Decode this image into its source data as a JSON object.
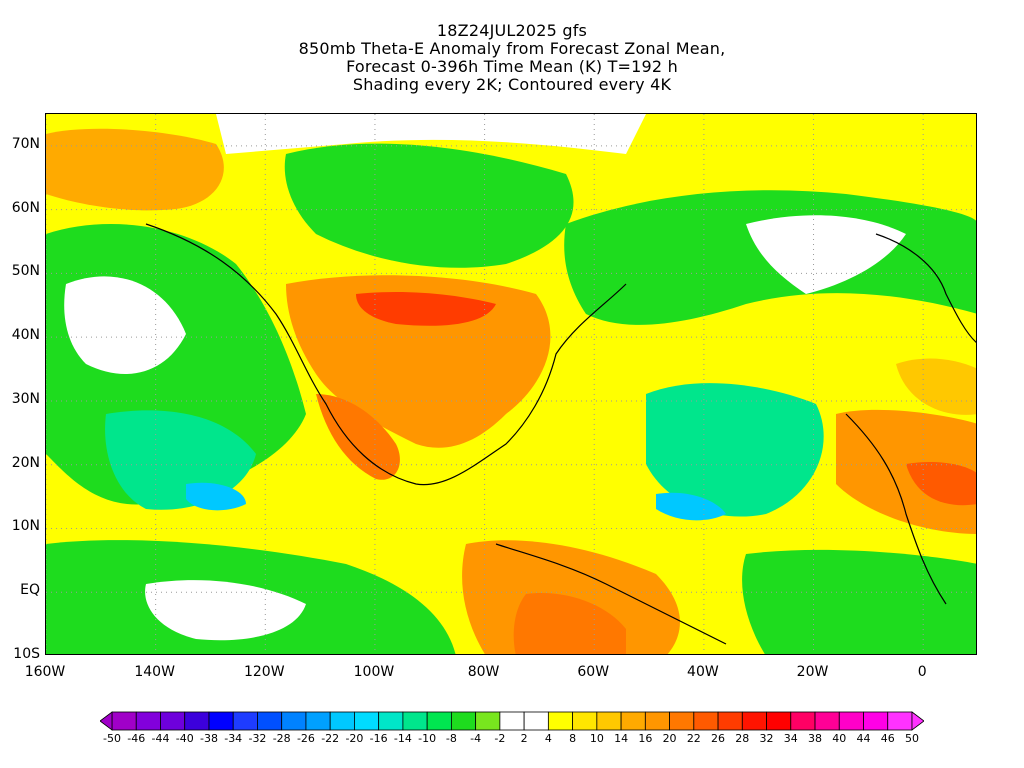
{
  "title": {
    "line1": "18Z24JUL2025 gfs",
    "line2": "850mb Theta-E Anomaly from Forecast Zonal Mean,",
    "line3": "Forecast 0-396h Time Mean (K) T=192 h",
    "line4": "Shading every 2K; Contoured every 4K"
  },
  "map": {
    "lat_labels": [
      "70N",
      "60N",
      "50N",
      "40N",
      "30N",
      "20N",
      "10N",
      "EQ",
      "10S"
    ],
    "lon_labels": [
      "160W",
      "140W",
      "120W",
      "100W",
      "80W",
      "60W",
      "40W",
      "20W",
      "0"
    ],
    "lon_range": [
      -160,
      10
    ],
    "lat_range": [
      -10,
      75
    ]
  },
  "colorbar": {
    "labels": [
      "-50",
      "-46",
      "-44",
      "-40",
      "-38",
      "-34",
      "-32",
      "-28",
      "-26",
      "-22",
      "-20",
      "-16",
      "-14",
      "-10",
      "-8",
      "-4",
      "-2",
      "2",
      "4",
      "8",
      "10",
      "14",
      "16",
      "20",
      "22",
      "26",
      "28",
      "32",
      "34",
      "38",
      "40",
      "44",
      "46",
      "50"
    ],
    "colors": [
      "#a000c8",
      "#8200dc",
      "#6e00dc",
      "#3c00dc",
      "#0000ff",
      "#1e3cff",
      "#0050ff",
      "#0082ff",
      "#00a0ff",
      "#00c8ff",
      "#00dcff",
      "#00e6c8",
      "#00e68c",
      "#00e650",
      "#1edc1e",
      "#78e61e",
      "#ffffff",
      "#ffffff",
      "#ffff00",
      "#ffe600",
      "#ffc800",
      "#ffaa00",
      "#ff9600",
      "#ff7800",
      "#ff5a00",
      "#ff3c00",
      "#ff1400",
      "#ff0000",
      "#ff0064",
      "#ff0096",
      "#ff00c8",
      "#ff00e6",
      "#ff32ff"
    ],
    "min_arrow_color": "#a000c8",
    "max_arrow_color": "#ff32ff"
  }
}
